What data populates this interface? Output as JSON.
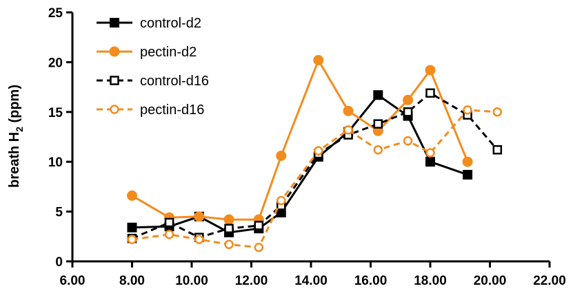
{
  "chart_data": {
    "type": "line",
    "title": "",
    "xlabel": "",
    "ylabel": "breath H",
    "ylabel_sub": "2",
    "ylabel_unit": " (ppm)",
    "xlim": [
      6,
      22
    ],
    "ylim": [
      0,
      25
    ],
    "x_ticks": [
      6,
      8,
      10,
      12,
      14,
      16,
      18,
      20,
      22
    ],
    "x_tick_labels": [
      "6.00",
      "8.00",
      "10.00",
      "12.00",
      "14.00",
      "16.00",
      "18.00",
      "20.00",
      "22.00"
    ],
    "y_ticks": [
      0,
      5,
      10,
      15,
      20,
      25
    ],
    "y_tick_labels": [
      "0",
      "5",
      "10",
      "15",
      "20",
      "25"
    ],
    "grid": false,
    "legend_position": "top-left",
    "series": [
      {
        "name": "control-d2",
        "color": "#000000",
        "dashed": false,
        "marker": "square-filled",
        "x": [
          8.0,
          9.25,
          10.25,
          11.25,
          12.25,
          13.0,
          14.25,
          15.25,
          16.25,
          17.25,
          18.0,
          19.25
        ],
        "y": [
          3.4,
          3.5,
          4.5,
          2.9,
          3.3,
          4.9,
          10.5,
          13.0,
          16.7,
          14.6,
          10.0,
          8.7
        ]
      },
      {
        "name": "pectin-d2",
        "color": "#f28c1e",
        "dashed": false,
        "marker": "circle-filled",
        "x": [
          8.0,
          9.25,
          10.25,
          11.25,
          12.25,
          13.0,
          14.25,
          15.25,
          16.25,
          17.25,
          18.0,
          19.25
        ],
        "y": [
          6.6,
          4.4,
          4.5,
          4.2,
          4.2,
          10.6,
          20.2,
          15.1,
          13.1,
          16.2,
          19.2,
          10.0
        ]
      },
      {
        "name": "control-d16",
        "color": "#000000",
        "dashed": true,
        "marker": "square-open",
        "x": [
          8.0,
          9.25,
          10.25,
          11.25,
          12.25,
          13.0,
          14.25,
          15.25,
          16.25,
          17.25,
          18.0,
          19.25,
          20.25
        ],
        "y": [
          2.3,
          3.9,
          2.4,
          3.3,
          3.6,
          5.6,
          10.8,
          12.7,
          13.8,
          15.0,
          16.9,
          14.7,
          11.2
        ]
      },
      {
        "name": "pectin-d16",
        "color": "#f28c1e",
        "dashed": true,
        "marker": "circle-open",
        "x": [
          8.0,
          9.25,
          10.25,
          11.25,
          12.25,
          13.0,
          14.25,
          15.25,
          16.25,
          17.25,
          18.0,
          19.25,
          20.25
        ],
        "y": [
          2.2,
          2.7,
          2.2,
          1.7,
          1.4,
          6.1,
          11.1,
          13.2,
          11.2,
          12.1,
          10.9,
          15.2,
          15.0
        ]
      }
    ]
  }
}
